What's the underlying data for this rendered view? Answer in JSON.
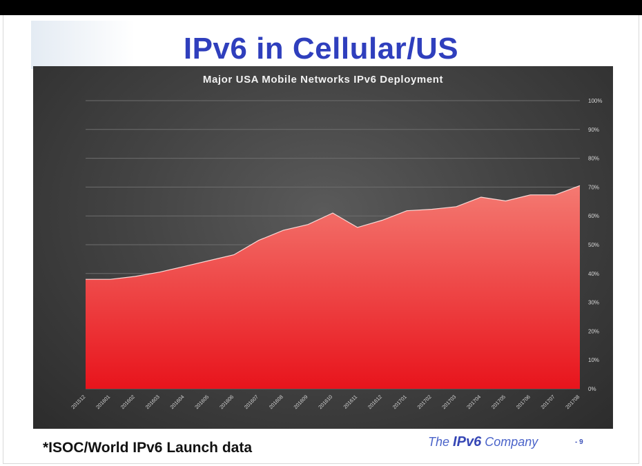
{
  "slide": {
    "title": "IPv6 in Cellular/US",
    "footnote": "*ISOC/World IPv6 Launch data",
    "company_prefix": "The",
    "company_strong": "IPv6",
    "company_suffix": "Company",
    "page_number": "- 9"
  },
  "colors": {
    "title": "#2f3fbd",
    "area_top": "#f47a72",
    "area_bottom": "#e8141c",
    "area_edge": "#fbd9d6"
  },
  "chart_data": {
    "type": "area",
    "title": "Major USA Mobile Networks IPv6 Deployment",
    "xlabel": "",
    "ylabel": "",
    "ylim": [
      0,
      100
    ],
    "y_ticks": [
      "0%",
      "10%",
      "20%",
      "30%",
      "40%",
      "50%",
      "60%",
      "70%",
      "80%",
      "90%",
      "100%"
    ],
    "y_axis_side": "right",
    "grid": true,
    "categories": [
      "201512",
      "201601",
      "201602",
      "201603",
      "201604",
      "201605",
      "201606",
      "201607",
      "201608",
      "201609",
      "201610",
      "201611",
      "201612",
      "201701",
      "201702",
      "201703",
      "201704",
      "201705",
      "201706",
      "201707",
      "201708"
    ],
    "series": [
      {
        "name": "IPv6 Deployment",
        "values": [
          38,
          38,
          39,
          40.5,
          42.5,
          44.5,
          46.5,
          51.5,
          55,
          57,
          61,
          56,
          58.5,
          61.8,
          62.3,
          63.2,
          66.5,
          65.2,
          67.3,
          67.3,
          70.5
        ]
      }
    ]
  }
}
